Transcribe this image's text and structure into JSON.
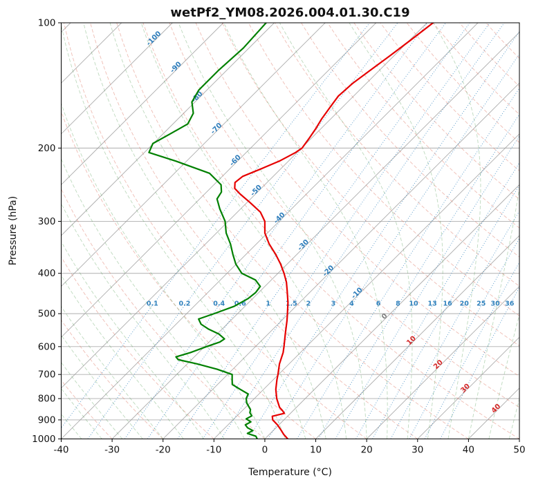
{
  "figure": {
    "title": "wetPf2_YM08.2026.004.01.30.C19",
    "xlabel": "Temperature (°C)",
    "ylabel": "Pressure (hPa)"
  },
  "chart_data": {
    "type": "line",
    "variant": "skewT-logP-sounding",
    "title": "wetPf2_YM08.2026.004.01.30.C19",
    "xlabel": "Temperature (°C)",
    "ylabel": "Pressure (hPa)",
    "xlim": [
      -40,
      50
    ],
    "pressure_lim_hpa": [
      100,
      1000
    ],
    "skew_degrees": 45,
    "grid": true,
    "x_ticks": [
      -40,
      -30,
      -20,
      -10,
      0,
      10,
      20,
      30,
      40,
      50
    ],
    "pressure_ticks": [
      100,
      200,
      300,
      400,
      500,
      600,
      700,
      800,
      900,
      1000
    ],
    "isotherms_c": {
      "start": -120,
      "end": 50,
      "step": 10
    },
    "dry_adiabats_theta_c": {
      "start": -30,
      "end": 180,
      "step": 10
    },
    "moist_adiabats_start_c": {
      "start": -52,
      "end": 48,
      "step": 4
    },
    "mixing_ratio_lines_g_kg": [
      0.1,
      0.2,
      0.4,
      0.6,
      1,
      1.5,
      2,
      3,
      4,
      6,
      8,
      10,
      13,
      16,
      20,
      25,
      30,
      36
    ],
    "mixing_ratio_label_pressure_hpa": 478,
    "isotherm_labels": [
      [
        -100,
        110
      ],
      [
        -90,
        129
      ],
      [
        -80,
        152
      ],
      [
        -70,
        181
      ],
      [
        -60,
        216
      ],
      [
        -50,
        255
      ],
      [
        -40,
        297
      ],
      [
        -30,
        345
      ],
      [
        -20,
        398
      ],
      [
        -10,
        450
      ],
      [
        0,
        512
      ],
      [
        10,
        585
      ],
      [
        20,
        668
      ],
      [
        30,
        762
      ],
      [
        40,
        852
      ]
    ],
    "colors": {
      "temperature": "#e60000",
      "dewpoint": "#008000",
      "isotherm": "#999999",
      "pressure_grid": "#999999",
      "dry_adiabat": "#e07b6a",
      "moist_adiabat": "#5aa05a",
      "mixing_ratio": "#3182bd",
      "isotherm_label_neg": "#2f7ebc",
      "isotherm_label_zero": "#808080",
      "isotherm_label_pos": "#d62728",
      "frame": "#000000"
    },
    "series": [
      {
        "name": "temperature",
        "units": "°C",
        "points_p_t": [
          [
            1000,
            4.5
          ],
          [
            975,
            2.8
          ],
          [
            950,
            1.3
          ],
          [
            925,
            -0.3
          ],
          [
            900,
            -2.2
          ],
          [
            882,
            -3.0
          ],
          [
            868,
            -1.2
          ],
          [
            855,
            -2.1
          ],
          [
            840,
            -3.3
          ],
          [
            800,
            -5.6
          ],
          [
            760,
            -7.6
          ],
          [
            720,
            -9.3
          ],
          [
            700,
            -10.1
          ],
          [
            660,
            -11.9
          ],
          [
            620,
            -13.4
          ],
          [
            600,
            -14.4
          ],
          [
            560,
            -16.6
          ],
          [
            520,
            -18.9
          ],
          [
            500,
            -20.2
          ],
          [
            470,
            -22.3
          ],
          [
            440,
            -24.8
          ],
          [
            420,
            -26.6
          ],
          [
            400,
            -28.8
          ],
          [
            380,
            -31.3
          ],
          [
            360,
            -34.2
          ],
          [
            340,
            -37.5
          ],
          [
            320,
            -40.5
          ],
          [
            300,
            -42.8
          ],
          [
            285,
            -45.5
          ],
          [
            270,
            -49.5
          ],
          [
            258,
            -53.0
          ],
          [
            250,
            -55.2
          ],
          [
            242,
            -56.3
          ],
          [
            234,
            -56.0
          ],
          [
            225,
            -54.0
          ],
          [
            215,
            -51.8
          ],
          [
            205,
            -50.3
          ],
          [
            200,
            -49.9
          ],
          [
            190,
            -50.4
          ],
          [
            180,
            -51.0
          ],
          [
            170,
            -51.8
          ],
          [
            160,
            -52.4
          ],
          [
            150,
            -53.0
          ],
          [
            140,
            -52.7
          ],
          [
            130,
            -51.8
          ],
          [
            120,
            -50.8
          ],
          [
            110,
            -49.8
          ],
          [
            100,
            -48.8
          ]
        ]
      },
      {
        "name": "dewpoint",
        "units": "°C",
        "points_p_t": [
          [
            1000,
            -1.5
          ],
          [
            985,
            -2.3
          ],
          [
            970,
            -4.5
          ],
          [
            955,
            -4.0
          ],
          [
            940,
            -5.6
          ],
          [
            925,
            -6.6
          ],
          [
            910,
            -6.1
          ],
          [
            895,
            -7.6
          ],
          [
            880,
            -7.1
          ],
          [
            865,
            -8.1
          ],
          [
            850,
            -8.6
          ],
          [
            820,
            -10.6
          ],
          [
            800,
            -11.6
          ],
          [
            780,
            -12.1
          ],
          [
            760,
            -14.6
          ],
          [
            740,
            -17.1
          ],
          [
            720,
            -18.1
          ],
          [
            700,
            -19.1
          ],
          [
            680,
            -23.1
          ],
          [
            660,
            -28.1
          ],
          [
            645,
            -32.6
          ],
          [
            635,
            -33.6
          ],
          [
            620,
            -31.6
          ],
          [
            600,
            -29.6
          ],
          [
            585,
            -27.9
          ],
          [
            575,
            -27.6
          ],
          [
            560,
            -29.6
          ],
          [
            545,
            -32.6
          ],
          [
            530,
            -35.1
          ],
          [
            515,
            -36.6
          ],
          [
            500,
            -34.6
          ],
          [
            480,
            -32.1
          ],
          [
            460,
            -30.9
          ],
          [
            445,
            -30.6
          ],
          [
            430,
            -30.9
          ],
          [
            415,
            -33.1
          ],
          [
            400,
            -37.1
          ],
          [
            380,
            -40.1
          ],
          [
            360,
            -42.6
          ],
          [
            340,
            -45.1
          ],
          [
            320,
            -48.1
          ],
          [
            300,
            -50.6
          ],
          [
            280,
            -54.1
          ],
          [
            265,
            -56.6
          ],
          [
            255,
            -57.1
          ],
          [
            245,
            -58.6
          ],
          [
            230,
            -63.1
          ],
          [
            215,
            -72.1
          ],
          [
            205,
            -79.1
          ],
          [
            195,
            -80.1
          ],
          [
            185,
            -78.6
          ],
          [
            175,
            -77.1
          ],
          [
            165,
            -78.1
          ],
          [
            155,
            -80.6
          ],
          [
            145,
            -81.6
          ],
          [
            130,
            -81.6
          ],
          [
            115,
            -81.1
          ],
          [
            100,
            -81.6
          ]
        ]
      }
    ]
  }
}
